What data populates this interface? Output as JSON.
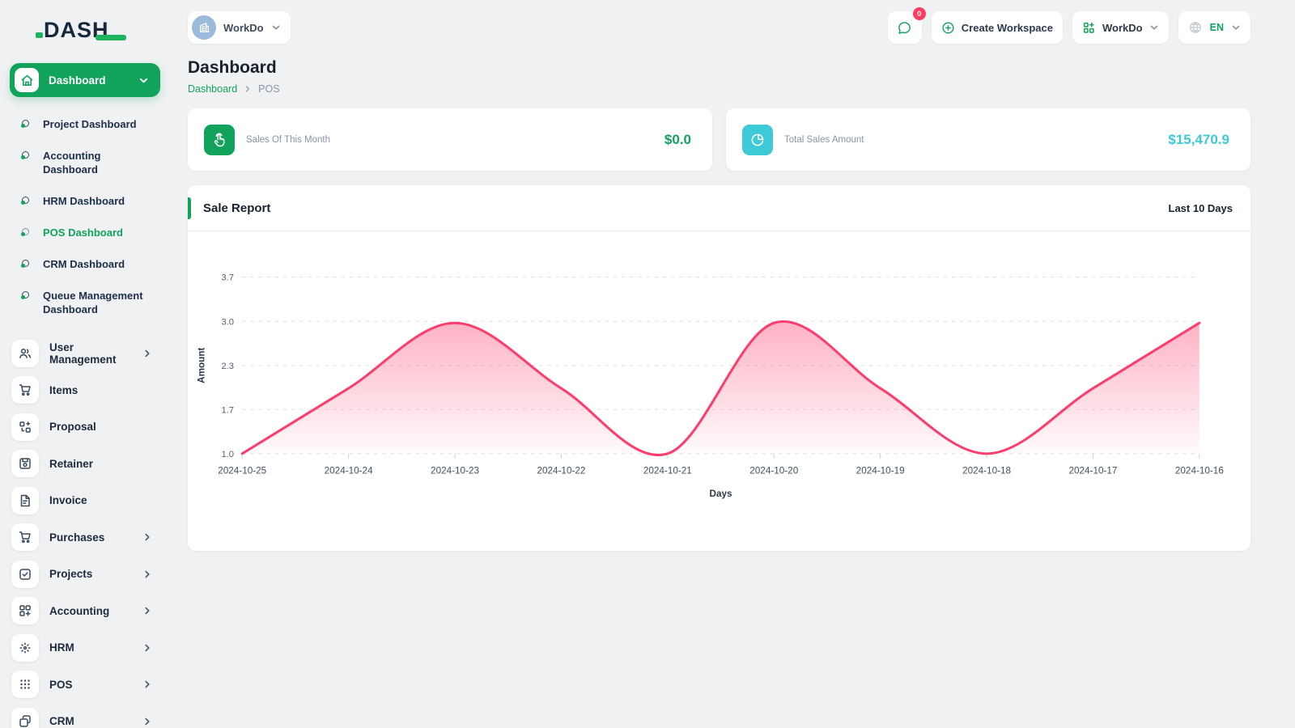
{
  "brand": {
    "name": "DASH"
  },
  "topbar": {
    "workspace": {
      "label": "WorkDo"
    },
    "chat": {
      "badge": "0"
    },
    "create_workspace": {
      "label": "Create Workspace"
    },
    "workdo_menu": {
      "label": "WorkDo"
    },
    "language": {
      "label": "EN"
    }
  },
  "sidebar": {
    "active_item": {
      "label": "Dashboard"
    },
    "dashboard_submenu": [
      {
        "label": "Project Dashboard"
      },
      {
        "label": "Accounting Dashboard"
      },
      {
        "label": "HRM Dashboard"
      },
      {
        "label": "POS Dashboard",
        "active": true
      },
      {
        "label": "CRM Dashboard"
      },
      {
        "label": "Queue Management Dashboard"
      }
    ],
    "menu": [
      {
        "label": "User Management",
        "expandable": true
      },
      {
        "label": "Items",
        "expandable": false
      },
      {
        "label": "Proposal",
        "expandable": false
      },
      {
        "label": "Retainer",
        "expandable": false
      },
      {
        "label": "Invoice",
        "expandable": false
      },
      {
        "label": "Purchases",
        "expandable": true
      },
      {
        "label": "Projects",
        "expandable": true
      },
      {
        "label": "Accounting",
        "expandable": true
      },
      {
        "label": "HRM",
        "expandable": true
      },
      {
        "label": "POS",
        "expandable": true
      },
      {
        "label": "CRM",
        "expandable": true
      }
    ]
  },
  "page": {
    "title": "Dashboard",
    "breadcrumb": {
      "parent": "Dashboard",
      "current": "POS"
    }
  },
  "stats": [
    {
      "label": "Sales Of This Month",
      "value": "$0.0",
      "icon": "tap-icon",
      "accent": "#11a35b"
    },
    {
      "label": "Total Sales Amount",
      "value": "$15,470.9",
      "icon": "pie-chart-icon",
      "accent": "#3ec9d6"
    }
  ],
  "sale_report": {
    "title": "Sale Report",
    "range": "Last 10 Days"
  },
  "chart_data": {
    "type": "area",
    "title": "Sale Report",
    "x": [
      "2024-10-25",
      "2024-10-24",
      "2024-10-23",
      "2024-10-22",
      "2024-10-21",
      "2024-10-20",
      "2024-10-19",
      "2024-10-18",
      "2024-10-17",
      "2024-10-16"
    ],
    "series": [
      {
        "name": "Amount",
        "values": [
          1,
          2,
          3,
          2,
          1,
          3,
          2,
          1,
          2,
          3
        ]
      }
    ],
    "xlabel": "Days",
    "ylabel": "Amount",
    "ylim": [
      1.0,
      3.7
    ],
    "yticks": {
      "values": [
        1.0,
        1.675,
        2.35,
        3.025,
        3.7
      ],
      "labels": [
        "1.0",
        "1.7",
        "2.3",
        "3.0",
        "3.7"
      ]
    },
    "line_color": "#fb3e6c",
    "fill_from": "rgba(251,62,108,0.40)",
    "fill_to": "rgba(251,62,108,0.02)",
    "grid": "dashed-horizontal",
    "legend": "none"
  },
  "colors": {
    "primary": "#11a35b",
    "secondary": "#3ec9d6",
    "chart_line": "#fb3e6c",
    "badge": "#fd3c61"
  }
}
